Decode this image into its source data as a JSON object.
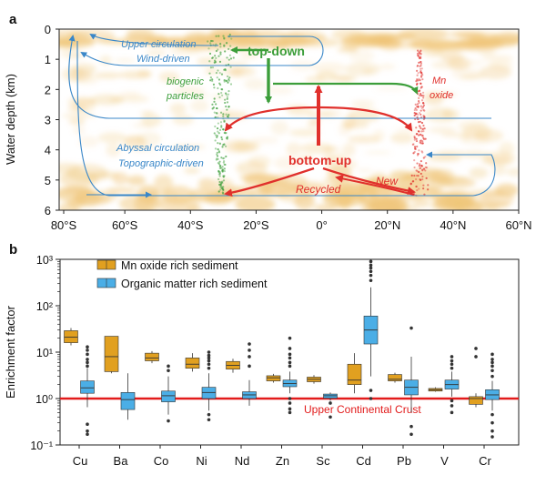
{
  "colors": {
    "mn": "#E1A020",
    "org": "#4BAEE6",
    "crust": "#E21B1B",
    "green": "#3C9E3A",
    "red": "#E0302C",
    "blue": "#3A87C8",
    "dust": "#F0C67A"
  },
  "panel_a": {
    "label": "a",
    "ylabel": "Water depth (km)",
    "xticks": [
      "80°S",
      "60°S",
      "40°S",
      "20°S",
      "0°",
      "20°N",
      "40°N",
      "60°N"
    ],
    "yticks": [
      "0",
      "1",
      "2",
      "3",
      "4",
      "5",
      "6"
    ],
    "annotations": {
      "upper_circ": "Upper circulation",
      "wind": "Wind-driven",
      "top_down": "top-down",
      "biogenic": "biogenic",
      "particles": "particles",
      "mn": "Mn",
      "oxide": "oxide",
      "abyssal": "Abyssal circulation",
      "topographic": "Topographic-driven",
      "bottom_up": "bottom-up",
      "recycled": "Recycled",
      "new": "New"
    }
  },
  "panel_b": {
    "label": "b",
    "ylabel": "Enrichment factor",
    "yticks": [
      "10⁻¹",
      "10⁰",
      "10¹",
      "10²",
      "10³"
    ],
    "crust_label": "Upper Continental Crust",
    "legend": [
      "Mn oxide rich sediment",
      "Organic matter rich sediment"
    ]
  },
  "chart_data": [
    {
      "type": "box",
      "ylabel": "Enrichment factor",
      "yscale": "log",
      "ylim": [
        0.1,
        1000
      ],
      "reference_line": {
        "label": "Upper Continental Crust",
        "value": 1
      },
      "categories": [
        "Cu",
        "Ba",
        "Co",
        "Ni",
        "Nd",
        "Zn",
        "Sc",
        "Cd",
        "Pb",
        "V",
        "Cr"
      ],
      "series": [
        {
          "name": "Mn oxide rich sediment",
          "boxes": [
            {
              "q1": 16,
              "median": 21,
              "q3": 29,
              "whislo": 14,
              "whishi": 33
            },
            {
              "q1": 3.8,
              "median": 8,
              "q3": 22,
              "whislo": 3.5,
              "whishi": 22
            },
            {
              "q1": 6.5,
              "median": 7.5,
              "q3": 9.5,
              "whislo": 5.8,
              "whishi": 10.5
            },
            {
              "q1": 4.5,
              "median": 5.5,
              "q3": 7.5,
              "whislo": 3.8,
              "whishi": 9.5
            },
            {
              "q1": 4.3,
              "median": 5.2,
              "q3": 6.3,
              "whislo": 3.6,
              "whishi": 7.2
            },
            {
              "q1": 2.4,
              "median": 2.8,
              "q3": 3.1,
              "whislo": 2.2,
              "whishi": 3.4
            },
            {
              "q1": 2.3,
              "median": 2.6,
              "q3": 2.9,
              "whislo": 2.1,
              "whishi": 3.2
            },
            {
              "q1": 2.0,
              "median": 2.5,
              "q3": 5.5,
              "whislo": 1.3,
              "whishi": 9.5
            },
            {
              "q1": 2.4,
              "median": 2.6,
              "q3": 3.3,
              "whislo": 2.2,
              "whishi": 3.6
            },
            {
              "q1": 1.45,
              "median": 1.55,
              "q3": 1.65,
              "whislo": 1.4,
              "whishi": 1.75
            },
            {
              "q1": 0.75,
              "median": 1.0,
              "q3": 1.1,
              "whislo": 0.65,
              "whishi": 1.3
            }
          ],
          "outliers": [
            [],
            [],
            [],
            [],
            [],
            [],
            [],
            [],
            [],
            [],
            [
              12,
              8
            ]
          ]
        },
        {
          "name": "Organic matter rich sediment",
          "boxes": [
            {
              "q1": 1.3,
              "median": 1.7,
              "q3": 2.4,
              "whislo": 0.65,
              "whishi": 4.5
            },
            {
              "q1": 0.58,
              "median": 0.95,
              "q3": 1.35,
              "whislo": 0.35,
              "whishi": 3.5
            },
            {
              "q1": 0.85,
              "median": 1.15,
              "q3": 1.45,
              "whislo": 0.45,
              "whishi": 3.0
            },
            {
              "q1": 1.0,
              "median": 1.35,
              "q3": 1.75,
              "whislo": 0.55,
              "whishi": 3.5
            },
            {
              "q1": 1.0,
              "median": 1.2,
              "q3": 1.4,
              "whislo": 0.7,
              "whishi": 2.5
            },
            {
              "q1": 1.8,
              "median": 2.1,
              "q3": 2.5,
              "whislo": 1.3,
              "whishi": 3.8
            },
            {
              "q1": 1.02,
              "median": 1.15,
              "q3": 1.25,
              "whislo": 0.9,
              "whishi": 1.35
            },
            {
              "q1": 15,
              "median": 30,
              "q3": 60,
              "whislo": 3,
              "whishi": 250
            },
            {
              "q1": 1.2,
              "median": 1.75,
              "q3": 2.5,
              "whislo": 0.5,
              "whishi": 8
            },
            {
              "q1": 1.6,
              "median": 2.0,
              "q3": 2.5,
              "whislo": 1.1,
              "whishi": 3.8
            },
            {
              "q1": 0.95,
              "median": 1.2,
              "q3": 1.55,
              "whislo": 0.55,
              "whishi": 2.4
            }
          ],
          "outliers": [
            [
              5,
              6,
              7,
              9,
              11,
              13,
              0.28,
              0.2,
              0.17
            ],
            [],
            [
              4,
              5,
              0.33
            ],
            [
              4.5,
              5.5,
              6.5,
              7.5,
              8.5,
              10,
              0.45,
              0.35
            ],
            [
              5,
              8,
              11,
              15
            ],
            [
              5,
              6,
              7.5,
              9,
              12,
              20,
              1.0,
              0.8,
              0.6,
              0.5
            ],
            [
              0.8,
              0.4
            ],
            [
              350,
              450,
              550,
              650,
              750,
              900,
              1.5,
              1.0
            ],
            [
              33,
              0.25,
              0.17
            ],
            [
              4.5,
              5.5,
              6.5,
              8,
              0.9,
              0.7,
              0.5
            ],
            [
              3,
              4,
              5,
              6,
              7,
              9,
              0.45,
              0.3,
              0.2,
              0.15
            ]
          ]
        }
      ]
    }
  ]
}
